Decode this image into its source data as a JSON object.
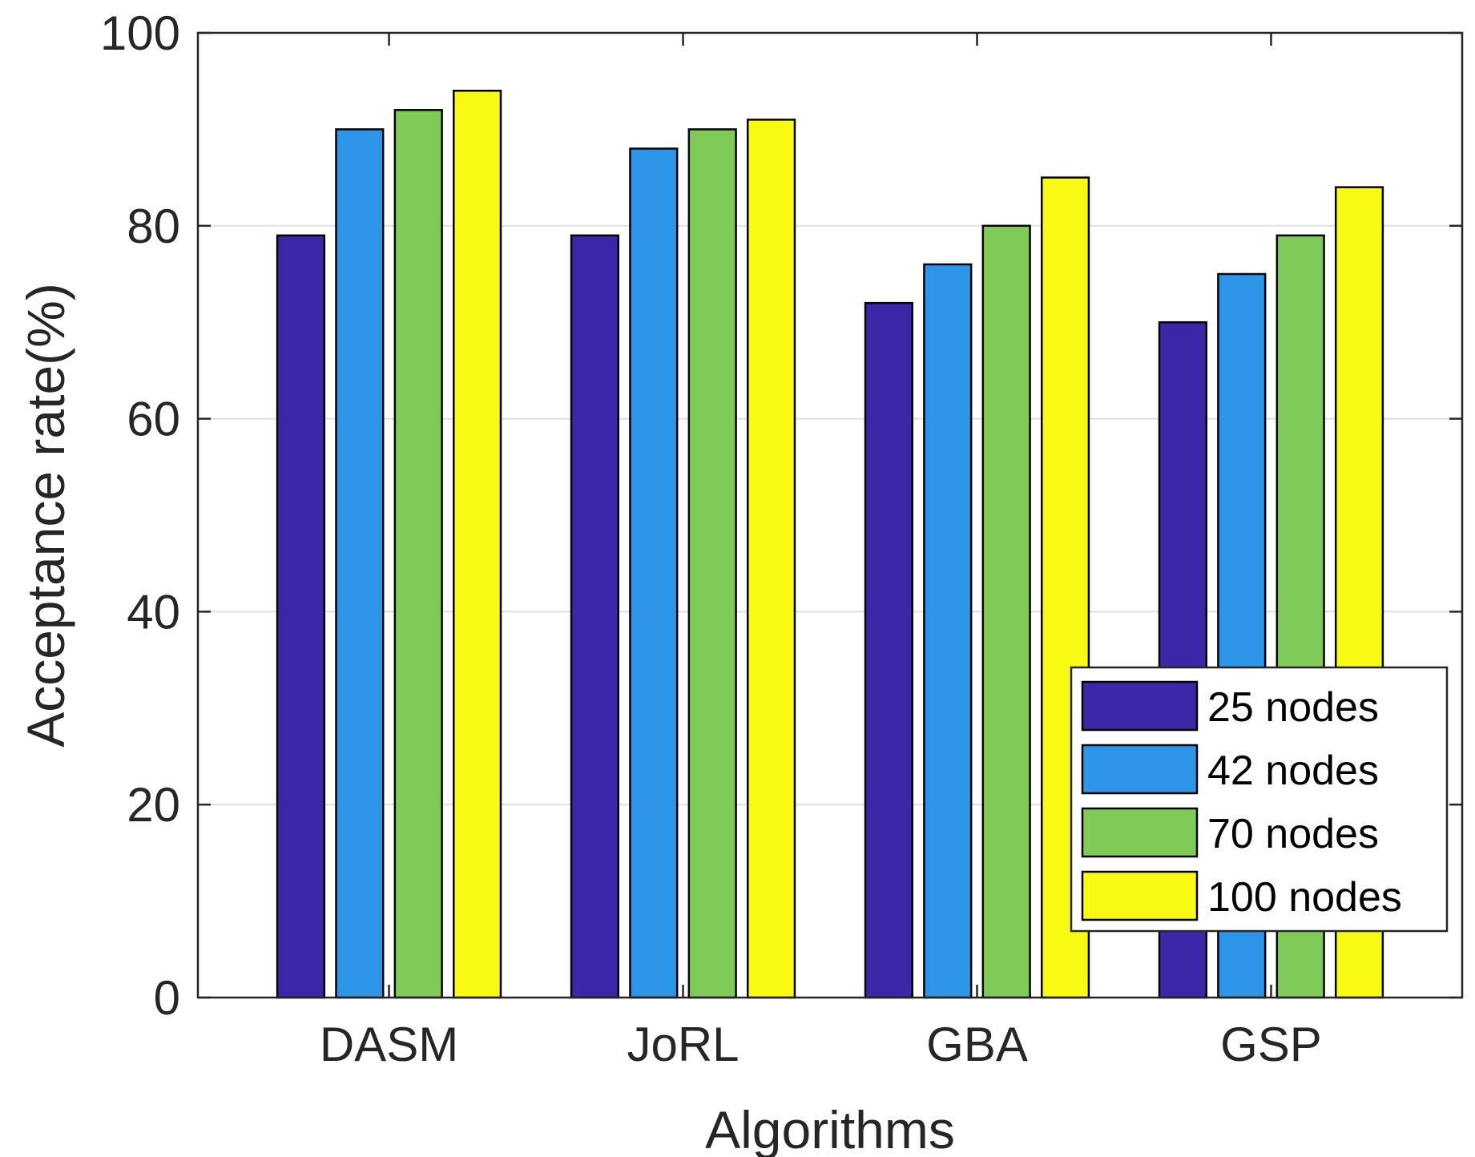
{
  "chart_data": {
    "type": "bar",
    "title": "",
    "xlabel": "Algorithms",
    "ylabel": "Acceptance rate(%)",
    "ylim": [
      0,
      100
    ],
    "yticks": [
      "0",
      "20",
      "40",
      "60",
      "80",
      "100"
    ],
    "grid": "horizontal",
    "legend_position": "bottom-right",
    "categories": [
      "DASM",
      "JoRL",
      "GBA",
      "GSP"
    ],
    "series": [
      {
        "name": "25 nodes",
        "color": "#3e26a8",
        "values": [
          79,
          79,
          72,
          70
        ]
      },
      {
        "name": "42 nodes",
        "color": "#2e96e8",
        "values": [
          90,
          88,
          76,
          75
        ]
      },
      {
        "name": "70 nodes",
        "color": "#80cb58",
        "values": [
          92,
          90,
          80,
          79
        ]
      },
      {
        "name": "100 nodes",
        "color": "#f9fa14",
        "values": [
          94,
          91,
          85,
          84
        ]
      }
    ]
  }
}
